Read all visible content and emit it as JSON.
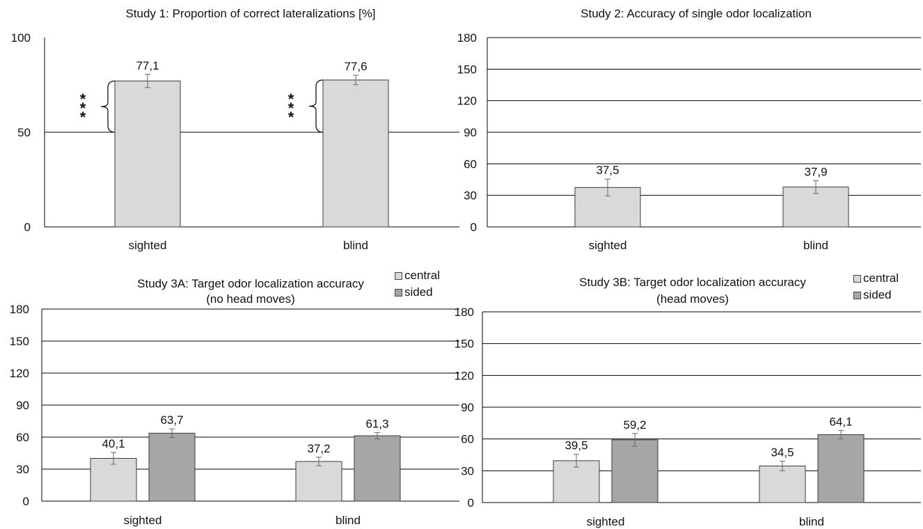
{
  "chart_data": [
    {
      "type": "bar",
      "title": "Study 1: Proportion of correct lateralizations [%]",
      "categories": [
        "sighted",
        "blind"
      ],
      "series": [
        {
          "values": [
            77.1,
            77.6
          ],
          "labels": [
            "77,1",
            "77,6"
          ],
          "error": [
            3.5,
            2.5
          ],
          "color": "#d9d9d9"
        }
      ],
      "ylim": [
        0,
        100
      ],
      "yticks": [
        0,
        50,
        100
      ],
      "gridlines": [
        50
      ],
      "baseline": 50,
      "significance": [
        "***",
        "***"
      ],
      "legend": "none"
    },
    {
      "type": "bar",
      "title": "Study 2: Accuracy of single odor localization",
      "categories": [
        "sighted",
        "blind"
      ],
      "series": [
        {
          "values": [
            37.5,
            37.9
          ],
          "labels": [
            "37,5",
            "37,9"
          ],
          "error": [
            8,
            6
          ],
          "color": "#d9d9d9"
        }
      ],
      "ylim": [
        0,
        180
      ],
      "yticks": [
        0,
        30,
        60,
        90,
        120,
        150,
        180
      ],
      "gridlines": [
        30,
        60,
        90,
        120,
        150,
        180
      ],
      "legend": "none"
    },
    {
      "type": "bar",
      "title": "Study 3A: Target odor localization accuracy",
      "subtitle": "(no head moves)",
      "categories": [
        "sighted",
        "blind"
      ],
      "series": [
        {
          "name": "central",
          "values": [
            40.1,
            37.2
          ],
          "labels": [
            "40,1",
            "37,2"
          ],
          "error": [
            5.5,
            4
          ],
          "color": "#d9d9d9"
        },
        {
          "name": "sided",
          "values": [
            63.7,
            61.3
          ],
          "labels": [
            "63,7",
            "61,3"
          ],
          "error": [
            4,
            3
          ],
          "color": "#a6a6a6"
        }
      ],
      "ylim": [
        0,
        180
      ],
      "yticks": [
        0,
        30,
        60,
        90,
        120,
        150,
        180
      ],
      "gridlines": [
        30,
        60,
        90,
        120,
        150,
        180
      ],
      "legend": "top-right"
    },
    {
      "type": "bar",
      "title": "Study 3B: Target odor localization accuracy",
      "subtitle": "(head moves)",
      "categories": [
        "sighted",
        "blind"
      ],
      "series": [
        {
          "name": "central",
          "values": [
            39.5,
            34.5
          ],
          "labels": [
            "39,5",
            "34,5"
          ],
          "error": [
            6,
            4.5
          ],
          "color": "#d9d9d9"
        },
        {
          "name": "sided",
          "values": [
            59.2,
            64.1
          ],
          "labels": [
            "59,2",
            "64,1"
          ],
          "error": [
            6,
            4
          ],
          "color": "#a6a6a6"
        }
      ],
      "ylim": [
        0,
        180
      ],
      "yticks": [
        0,
        30,
        60,
        90,
        120,
        150,
        180
      ],
      "gridlines": [
        30,
        60,
        90,
        120,
        150,
        180
      ],
      "legend": "top-right"
    }
  ]
}
